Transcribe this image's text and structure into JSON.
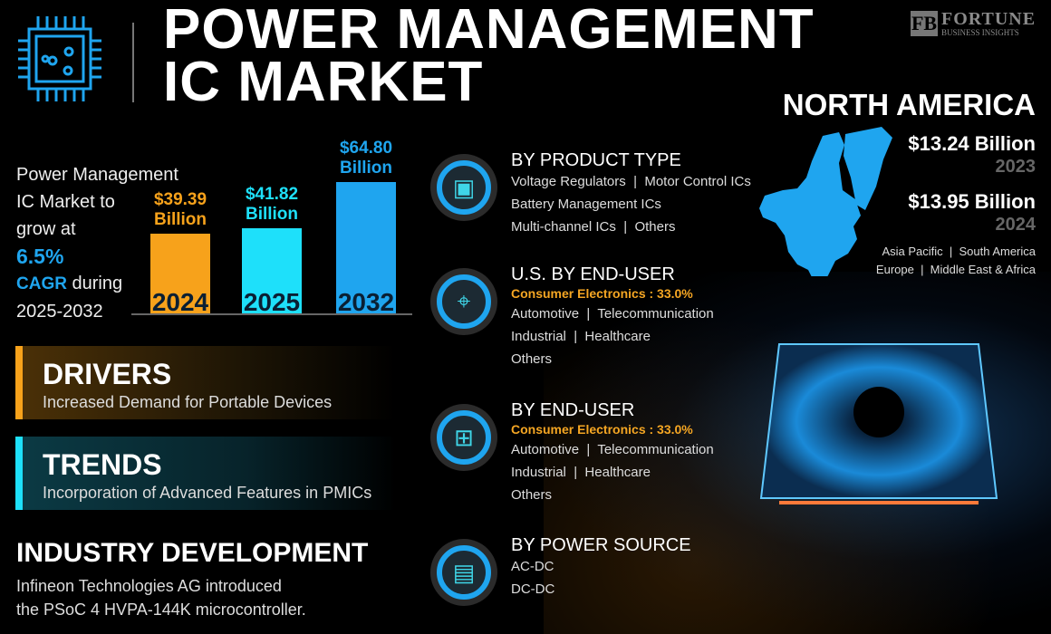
{
  "header": {
    "title_line1": "POWER MANAGEMENT",
    "title_line2": "IC MARKET",
    "logo_name": "FORTUNE",
    "logo_sub": "BUSINESS INSIGHTS",
    "logo_mark": "FB"
  },
  "summary": {
    "line1": "Power Management",
    "line2": "IC Market to",
    "line3": "grow at",
    "cagr_value": "6.5%",
    "cagr_label": "CAGR",
    "during": " during",
    "period": "2025-2032"
  },
  "chart_data": {
    "type": "bar",
    "categories": [
      "2024",
      "2025",
      "2032"
    ],
    "values": [
      39.39,
      41.82,
      64.8
    ],
    "labels": [
      "$39.39",
      "$41.82",
      "$64.80"
    ],
    "unit": "Billion",
    "colors": [
      "#f7a21b",
      "#1ee0fa",
      "#1fa5ef"
    ],
    "label_colors": [
      "#f7a21b",
      "#1ee0fa",
      "#1fa5ef"
    ]
  },
  "drivers": {
    "title": "DRIVERS",
    "text": "Increased Demand for Portable Devices",
    "accent": "#f7a21b"
  },
  "trends": {
    "title": "TRENDS",
    "text": "Incorporation of Advanced Features in PMICs",
    "accent": "#1ee0fa"
  },
  "industry": {
    "title": "INDUSTRY DEVELOPMENT",
    "line1": "Infineon Technologies AG introduced",
    "line2": "the PSoC 4 HVPA-144K microcontroller."
  },
  "segments": [
    {
      "title": "BY PRODUCT TYPE",
      "icon": "chip-icon",
      "items": [
        "Voltage Regulators  |  Motor Control ICs",
        "Battery Management ICs",
        "Multi-channel ICs  |  Others"
      ]
    },
    {
      "title": "U.S. BY END-USER",
      "icon": "us-map-pin-icon",
      "highlight": "Consumer Electronics : 33.0%",
      "items": [
        "Automotive  |  Telecommunication",
        "Industrial  |  Healthcare",
        "Others"
      ]
    },
    {
      "title": "BY END-USER",
      "icon": "circuit-icon",
      "highlight": "Consumer Electronics : 33.0%",
      "items": [
        "Automotive  |  Telecommunication",
        "Industrial  |  Healthcare",
        "Others"
      ]
    },
    {
      "title": "BY POWER SOURCE",
      "icon": "circuit-board-icon",
      "items": [
        "AC-DC",
        "DC-DC"
      ]
    }
  ],
  "region": {
    "title": "NORTH AMERICA",
    "value1": "$13.24 Billion",
    "year1": "2023",
    "value2": "$13.95 Billion",
    "year2": "2024",
    "others1": "Asia Pacific  |  South America",
    "others2": "Europe  |  Middle East & Africa"
  }
}
